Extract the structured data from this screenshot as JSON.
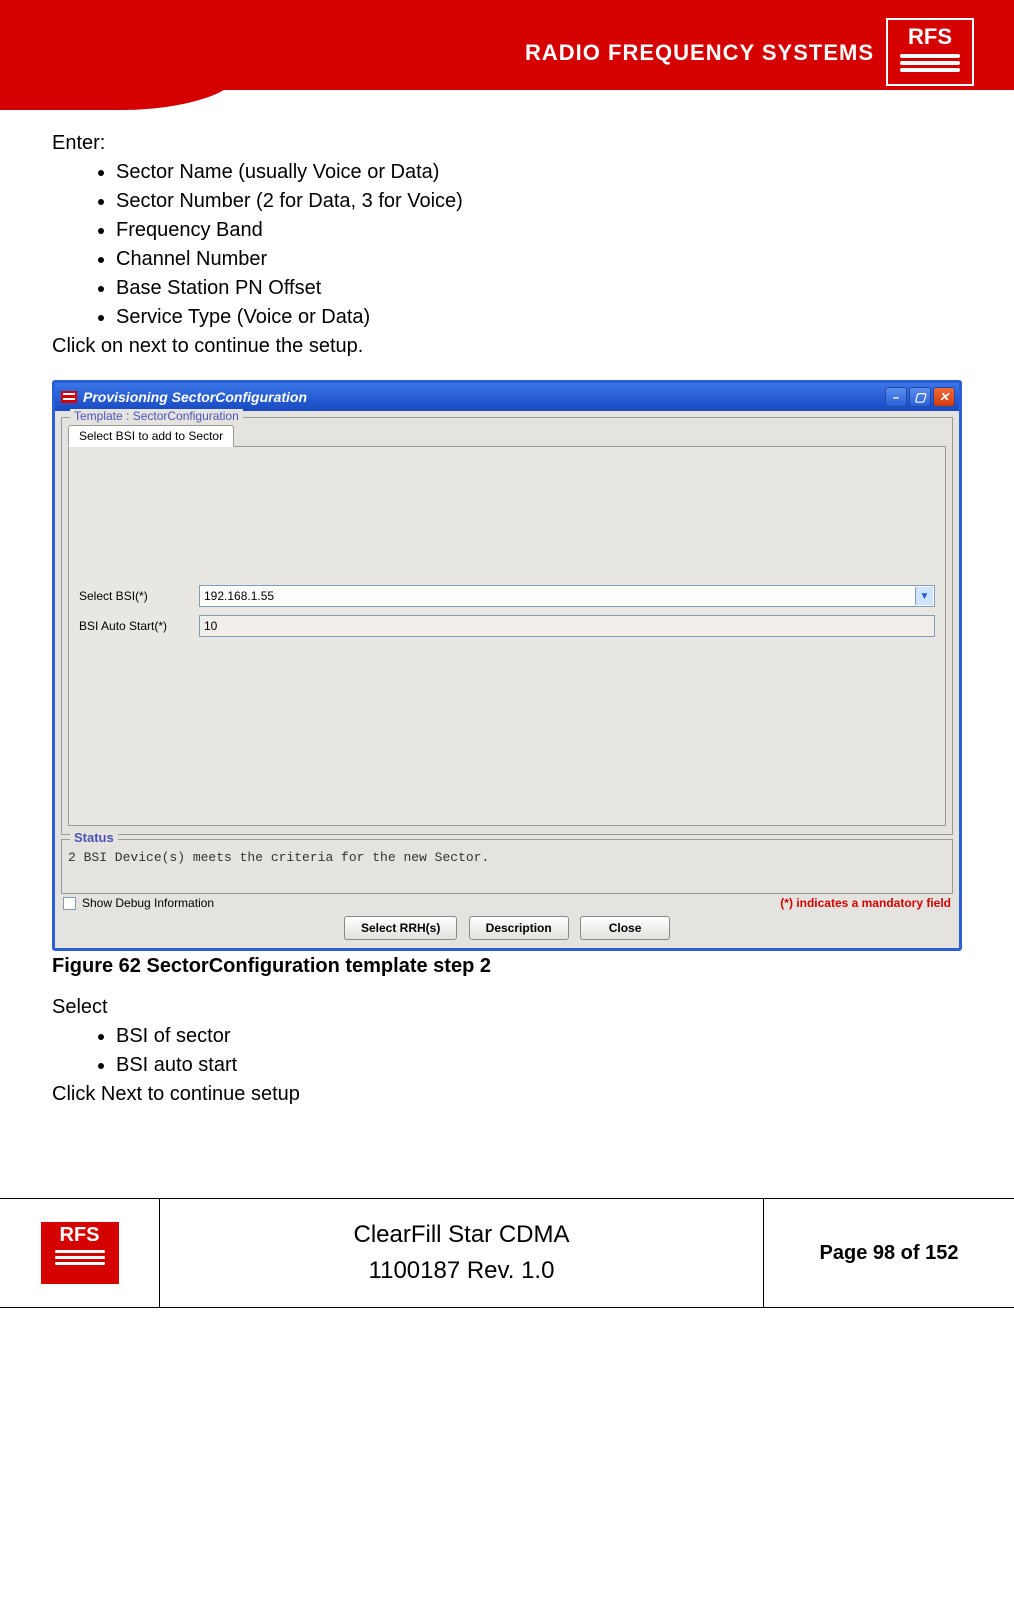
{
  "banner": {
    "title": "RADIO FREQUENCY SYSTEMS",
    "logo_text": "RFS",
    "bg_color": "#d50000"
  },
  "body": {
    "enter_label": "Enter:",
    "enter_items": [
      "Sector Name (usually Voice or Data)",
      "Sector Number (2 for Data, 3 for Voice)",
      "Frequency Band",
      "Channel Number",
      "Base Station PN Offset",
      "Service Type (Voice or Data)"
    ],
    "click_next_1": "Click on next to continue the setup.",
    "figure_caption": "Figure 62 SectorConfiguration template step 2",
    "select_label": "Select",
    "select_items": [
      "BSI of sector",
      "BSI auto start"
    ],
    "click_next_2": "Click Next to continue setup"
  },
  "dialog": {
    "title": "Provisioning SectorConfiguration",
    "template_legend": "Template : SectorConfiguration",
    "tab_label": "Select BSI to add to Sector",
    "fields": {
      "select_bsi": {
        "label": "Select BSI(*)",
        "value": "192.168.1.55"
      },
      "bsi_auto_start": {
        "label": "BSI Auto Start(*)",
        "value": "10"
      }
    },
    "status_legend": "Status",
    "status_text": "2 BSI Device(s) meets the criteria for the new Sector.",
    "show_debug": "Show Debug Information",
    "mandatory_note": "(*) indicates a mandatory field",
    "buttons": {
      "select_rrh": "Select RRH(s)",
      "description": "Description",
      "close": "Close"
    },
    "colors": {
      "titlebar_gradient_top": "#3a75e8",
      "titlebar_gradient_bottom": "#1849c0",
      "body_bg": "#e4e3df",
      "legend_color": "#4a54b8",
      "mandatory_color": "#d50000",
      "field_border": "#7f9db9"
    }
  },
  "footer": {
    "product": "ClearFill Star CDMA",
    "rev": "1100187 Rev. 1.0",
    "page": "Page 98 of 152",
    "logo_text": "RFS"
  }
}
